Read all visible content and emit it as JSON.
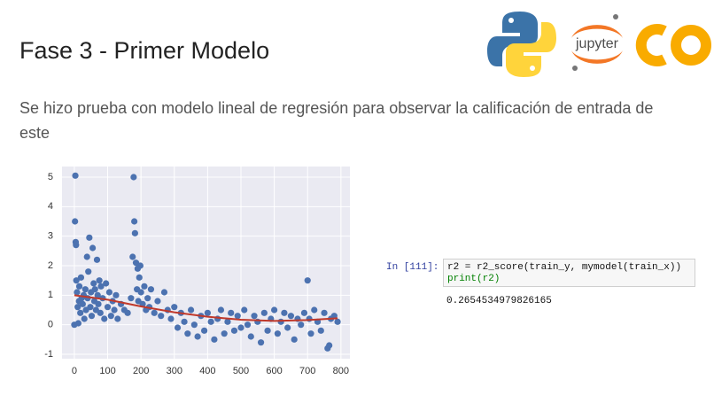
{
  "slide": {
    "title": "Fase 3 - Primer Modelo",
    "text": "Se hizo prueba con modelo lineal de regresión para observar la calificación de entrada de este",
    "logo_text": "jupyter"
  },
  "notebook": {
    "prompt": "In [111]:",
    "code": [
      "r2 = r2_score(train_y, mymodel(train_x))",
      "print(r2)"
    ],
    "output": "0.2654534979826165"
  },
  "chart_data": {
    "type": "scatter",
    "xlim": [
      -37,
      827
    ],
    "ylim": [
      -1.15,
      5.36
    ],
    "xticks": [
      0,
      100,
      200,
      300,
      400,
      500,
      600,
      700,
      800
    ],
    "yticks": [
      -1,
      0,
      1,
      2,
      3,
      4,
      5
    ],
    "grid": true,
    "series": [
      {
        "type": "scatter",
        "color": "#4c72b0",
        "x": [
          0,
          2,
          3,
          4,
          5,
          6,
          8,
          10,
          12,
          14,
          15,
          18,
          20,
          22,
          25,
          28,
          30,
          33,
          35,
          38,
          40,
          42,
          45,
          48,
          50,
          52,
          55,
          58,
          60,
          62,
          65,
          68,
          70,
          72,
          75,
          78,
          80,
          85,
          90,
          95,
          100,
          105,
          110,
          115,
          120,
          125,
          130,
          140,
          150,
          160,
          170,
          175,
          178,
          180,
          182,
          185,
          188,
          190,
          192,
          195,
          198,
          200,
          205,
          210,
          215,
          220,
          225,
          230,
          240,
          250,
          260,
          270,
          280,
          290,
          300,
          310,
          320,
          330,
          340,
          350,
          360,
          370,
          380,
          390,
          400,
          410,
          420,
          430,
          440,
          450,
          460,
          470,
          480,
          490,
          500,
          510,
          520,
          530,
          540,
          550,
          560,
          570,
          580,
          590,
          600,
          610,
          620,
          630,
          640,
          650,
          660,
          670,
          680,
          690,
          700,
          705,
          710,
          720,
          730,
          740,
          750,
          760,
          765,
          770,
          780,
          790
        ],
        "values": [
          0.0,
          3.5,
          5.05,
          2.8,
          2.7,
          1.5,
          1.1,
          0.6,
          0.05,
          0.8,
          1.3,
          0.4,
          1.6,
          0.9,
          0.7,
          1.0,
          0.2,
          1.2,
          0.5,
          2.3,
          0.9,
          1.8,
          2.95,
          0.6,
          1.1,
          0.3,
          2.6,
          1.4,
          0.8,
          1.2,
          0.5,
          2.2,
          1.0,
          0.7,
          1.5,
          0.4,
          1.3,
          0.9,
          0.2,
          1.4,
          0.6,
          1.1,
          0.3,
          0.8,
          0.5,
          1.0,
          0.2,
          0.7,
          0.5,
          0.4,
          0.9,
          2.3,
          5.0,
          3.5,
          3.1,
          2.1,
          1.2,
          1.9,
          0.8,
          1.6,
          2.0,
          1.1,
          0.7,
          1.3,
          0.5,
          0.9,
          0.6,
          1.2,
          0.4,
          0.8,
          0.3,
          1.1,
          0.5,
          0.2,
          0.6,
          -0.1,
          0.4,
          0.1,
          -0.3,
          0.5,
          0.0,
          -0.4,
          0.3,
          -0.2,
          0.4,
          0.1,
          -0.5,
          0.2,
          0.5,
          -0.3,
          0.1,
          0.4,
          -0.2,
          0.3,
          -0.1,
          0.5,
          0.0,
          -0.4,
          0.3,
          0.1,
          -0.6,
          0.4,
          -0.2,
          0.2,
          0.5,
          -0.3,
          0.1,
          0.4,
          -0.1,
          0.3,
          -0.5,
          0.2,
          0.0,
          0.4,
          1.5,
          0.2,
          -0.3,
          0.5,
          0.1,
          -0.2,
          0.4,
          -0.8,
          -0.7,
          0.2,
          0.3,
          0.1
        ]
      },
      {
        "type": "line",
        "color": "#c0392b",
        "x": [
          0,
          100,
          200,
          300,
          400,
          500,
          600,
          700,
          790
        ],
        "values": [
          1.0,
          0.85,
          0.62,
          0.42,
          0.27,
          0.17,
          0.13,
          0.16,
          0.22
        ]
      }
    ]
  }
}
